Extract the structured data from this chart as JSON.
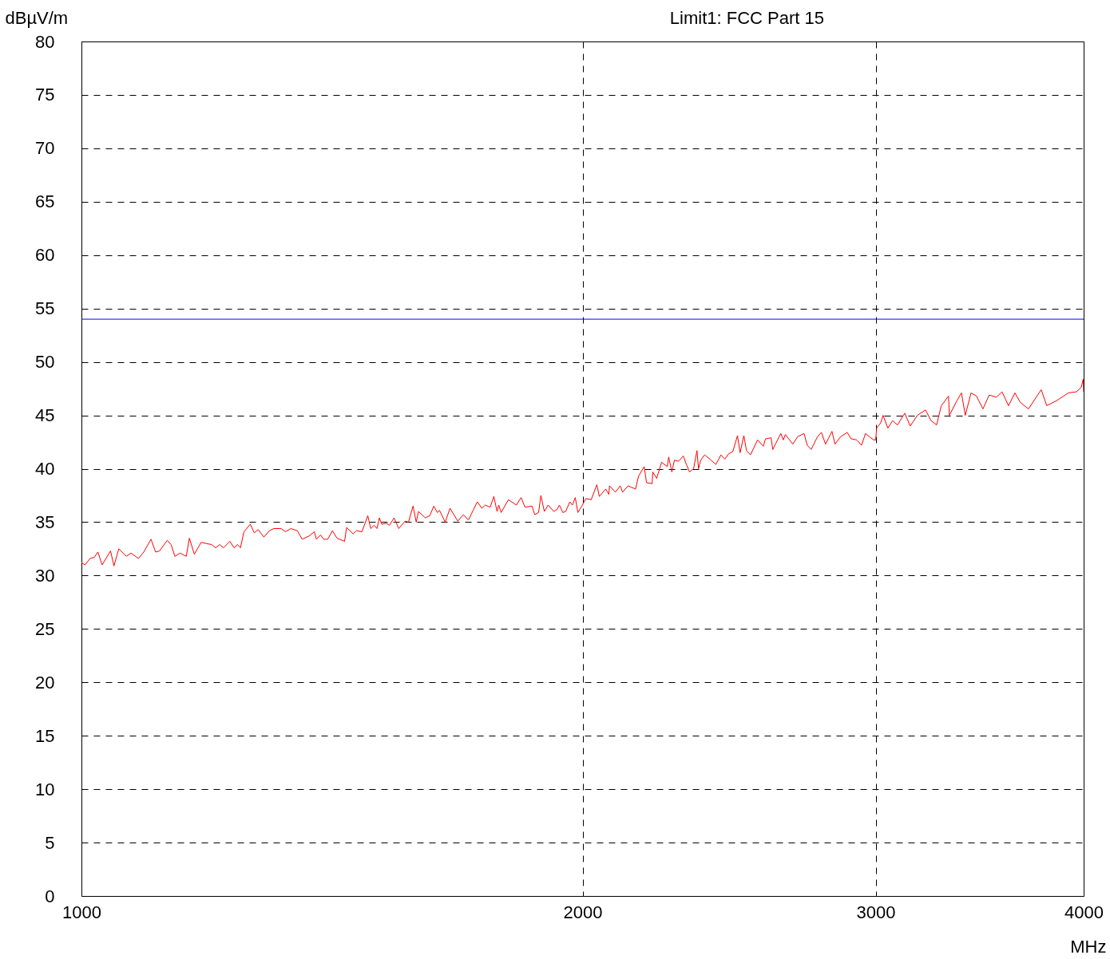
{
  "chart_data": {
    "type": "line",
    "xlabel": "MHz",
    "ylabel": "dBµV/m",
    "annotations": [
      "Limit1: FCC Part 15"
    ],
    "log": "x",
    "grid": true,
    "xlim": [
      1000,
      4000
    ],
    "xticks": [
      1000,
      2000,
      3000,
      4000
    ],
    "ylim": [
      0,
      80
    ],
    "yticks": [
      0,
      5,
      10,
      15,
      20,
      25,
      30,
      35,
      40,
      45,
      50,
      55,
      60,
      65,
      70,
      75,
      80
    ],
    "ref_lines": [
      {
        "axis": "y",
        "value": 54,
        "color": "#0000ff"
      }
    ],
    "x": [
      1000,
      1005,
      1012,
      1018,
      1023,
      1029,
      1041,
      1046,
      1053,
      1064,
      1071,
      1082,
      1090,
      1101,
      1108,
      1114,
      1126,
      1132,
      1138,
      1146,
      1156,
      1161,
      1169,
      1180,
      1197,
      1204,
      1211,
      1217,
      1228,
      1235,
      1241,
      1246,
      1252,
      1263,
      1270,
      1277,
      1287,
      1297,
      1305,
      1318,
      1326,
      1336,
      1348,
      1357,
      1370,
      1380,
      1384,
      1392,
      1398,
      1406,
      1415,
      1424,
      1439,
      1443,
      1456,
      1463,
      1474,
      1486,
      1492,
      1499,
      1505,
      1510,
      1515,
      1524,
      1531,
      1541,
      1551,
      1565,
      1572,
      1582,
      1589,
      1594,
      1609,
      1619,
      1628,
      1636,
      1641,
      1654,
      1665,
      1683,
      1696,
      1708,
      1719,
      1729,
      1740,
      1748,
      1760,
      1769,
      1777,
      1781,
      1787,
      1805,
      1825,
      1837,
      1847,
      1865,
      1872,
      1882,
      1888,
      1897,
      1907,
      1922,
      1931,
      1937,
      1946,
      1954,
      1965,
      1972,
      1980,
      1987,
      1998,
      2009,
      2024,
      2040,
      2047,
      2065,
      2074,
      2076,
      2093,
      2107,
      2114,
      2130,
      2152,
      2161,
      2178,
      2185,
      2202,
      2204,
      2216,
      2231,
      2249,
      2253,
      2263,
      2271,
      2284,
      2299,
      2309,
      2319,
      2332,
      2343,
      2348,
      2355,
      2368,
      2389,
      2405,
      2422,
      2435,
      2448,
      2462,
      2478,
      2487,
      2500,
      2509,
      2523,
      2548,
      2568,
      2576,
      2596,
      2602,
      2631,
      2640,
      2648,
      2675,
      2693,
      2717,
      2729,
      2744,
      2768,
      2783,
      2799,
      2824,
      2836,
      2858,
      2884,
      2900,
      2922,
      2942,
      2958,
      2974,
      2991,
      3000,
      3004,
      3021,
      3031,
      3051,
      3071,
      3092,
      3123,
      3147,
      3178,
      3214,
      3239,
      3264,
      3285,
      3318,
      3322,
      3355,
      3378,
      3396,
      3423,
      3449,
      3480,
      3510,
      3545,
      3573,
      3605,
      3637,
      3665,
      3706,
      3772,
      3801,
      3856,
      3916,
      3960,
      3986,
      3998,
      4000
    ],
    "series": [
      {
        "color": "#ff0000",
        "values": [
          31.2,
          31.0,
          31.6,
          31.7,
          32.2,
          31.0,
          32.3,
          30.9,
          32.5,
          31.8,
          32.1,
          31.6,
          32.2,
          33.4,
          32.2,
          32.3,
          33.3,
          32.9,
          31.8,
          32.1,
          31.8,
          33.5,
          32.0,
          33.1,
          32.9,
          32.6,
          32.9,
          32.6,
          33.2,
          32.6,
          32.9,
          32.6,
          34.1,
          34.8,
          34.0,
          34.3,
          33.6,
          34.2,
          34.4,
          34.4,
          34.1,
          34.4,
          34.2,
          33.4,
          33.7,
          34.1,
          33.4,
          33.8,
          33.4,
          33.4,
          34.2,
          33.5,
          33.2,
          34.5,
          33.9,
          34.2,
          34.1,
          35.6,
          34.4,
          34.7,
          34.4,
          35.4,
          34.8,
          34.9,
          34.7,
          35.4,
          34.4,
          35.1,
          35.0,
          36.5,
          35.0,
          36.0,
          35.4,
          35.6,
          36.5,
          35.9,
          36.1,
          35.0,
          36.3,
          35.1,
          35.7,
          35.2,
          36.1,
          36.9,
          36.3,
          36.6,
          36.4,
          37.4,
          36.0,
          36.6,
          35.9,
          37.1,
          36.6,
          37.3,
          36.4,
          36.5,
          35.7,
          35.9,
          37.5,
          36.0,
          36.6,
          36.0,
          36.2,
          36.6,
          35.9,
          36.0,
          36.9,
          36.6,
          37.3,
          35.9,
          36.5,
          37.2,
          37.1,
          38.5,
          37.4,
          38.1,
          37.6,
          38.4,
          37.8,
          38.4,
          37.8,
          38.4,
          38.1,
          39.3,
          40.2,
          38.7,
          38.6,
          39.7,
          39.1,
          40.6,
          40.2,
          41.1,
          39.7,
          40.8,
          40.7,
          41.2,
          40.4,
          39.7,
          40.0,
          41.7,
          40.0,
          40.8,
          41.3,
          40.8,
          40.4,
          41.3,
          40.9,
          41.4,
          41.6,
          43.1,
          41.5,
          43.1,
          41.7,
          41.3,
          42.7,
          42.1,
          42.8,
          42.9,
          41.8,
          43.3,
          42.7,
          43.2,
          42.3,
          43.0,
          43.3,
          42.2,
          41.8,
          43.0,
          43.4,
          42.3,
          43.5,
          42.3,
          43.0,
          43.4,
          42.8,
          42.7,
          42.2,
          43.3,
          43.0,
          42.7,
          42.7,
          43.8,
          44.3,
          45.0,
          43.8,
          44.5,
          44.1,
          45.2,
          44.0,
          45.0,
          45.5,
          44.5,
          44.1,
          45.9,
          46.8,
          45.0,
          46.3,
          47.1,
          45.0,
          47.1,
          46.8,
          45.6,
          46.9,
          46.7,
          47.2,
          45.9,
          47.1,
          46.2,
          45.6,
          47.4,
          45.9,
          46.4,
          47.1,
          47.2,
          47.6,
          48.4,
          47.2
        ]
      }
    ]
  }
}
